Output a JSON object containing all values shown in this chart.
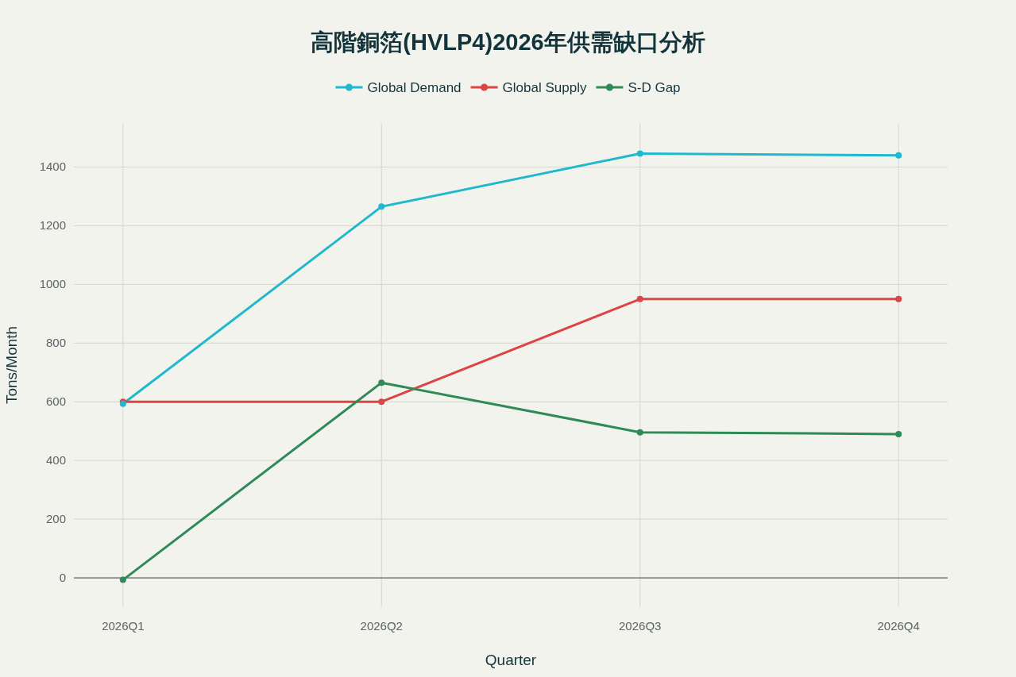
{
  "chart_data": {
    "type": "line",
    "title": "高階銅箔(HVLP4)2026年供需缺口分析",
    "xlabel": "Quarter",
    "ylabel": "Tons/Month",
    "categories": [
      "2026Q1",
      "2026Q2",
      "2026Q3",
      "2026Q4"
    ],
    "series": [
      {
        "name": "Global Demand",
        "color": "#1fb8cd",
        "values": [
          593,
          1265,
          1446,
          1440
        ]
      },
      {
        "name": "Global Supply",
        "color": "#db4545",
        "values": [
          600,
          600,
          950,
          950
        ]
      },
      {
        "name": "S-D Gap",
        "color": "#2e8b57",
        "values": [
          -7,
          665,
          496,
          490
        ]
      }
    ],
    "ylim": [
      -100,
      1550
    ],
    "yticks": [
      0,
      200,
      400,
      600,
      800,
      1000,
      1200,
      1400
    ],
    "ref_lines": [
      {
        "axis": "y",
        "value": 0,
        "color": "#666666"
      }
    ],
    "grid": true,
    "legend": "top",
    "marker": "circle",
    "line_style": "solid"
  }
}
